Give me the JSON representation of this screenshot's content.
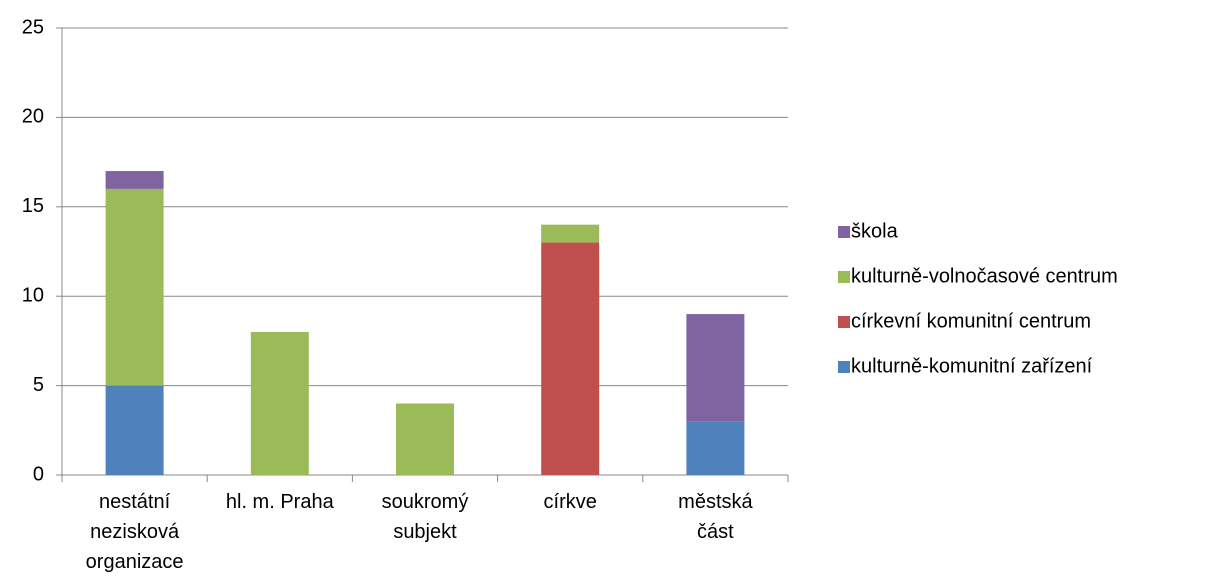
{
  "chart_data": {
    "type": "stacked_bar",
    "categories": [
      "nestátní nezisková organizace",
      "hl. m. Praha",
      "soukromý subjekt",
      "církve",
      "městská část"
    ],
    "series": [
      {
        "name": "kulturně-komunitní zařízení",
        "color": "#4f81bd",
        "values": [
          5,
          0,
          0,
          0,
          3
        ]
      },
      {
        "name": "církevní komunitní centrum",
        "color": "#c0504d",
        "values": [
          0,
          0,
          0,
          13,
          0
        ]
      },
      {
        "name": "kulturně-volnočasové centrum",
        "color": "#9bbb59",
        "values": [
          11,
          8,
          4,
          1,
          0
        ]
      },
      {
        "name": "škola",
        "color": "#8064a2",
        "values": [
          1,
          0,
          0,
          0,
          6
        ]
      }
    ],
    "ylim": [
      0,
      25
    ],
    "yticks": [
      0,
      5,
      10,
      15,
      20,
      25
    ],
    "grid": true,
    "legend": "right"
  }
}
